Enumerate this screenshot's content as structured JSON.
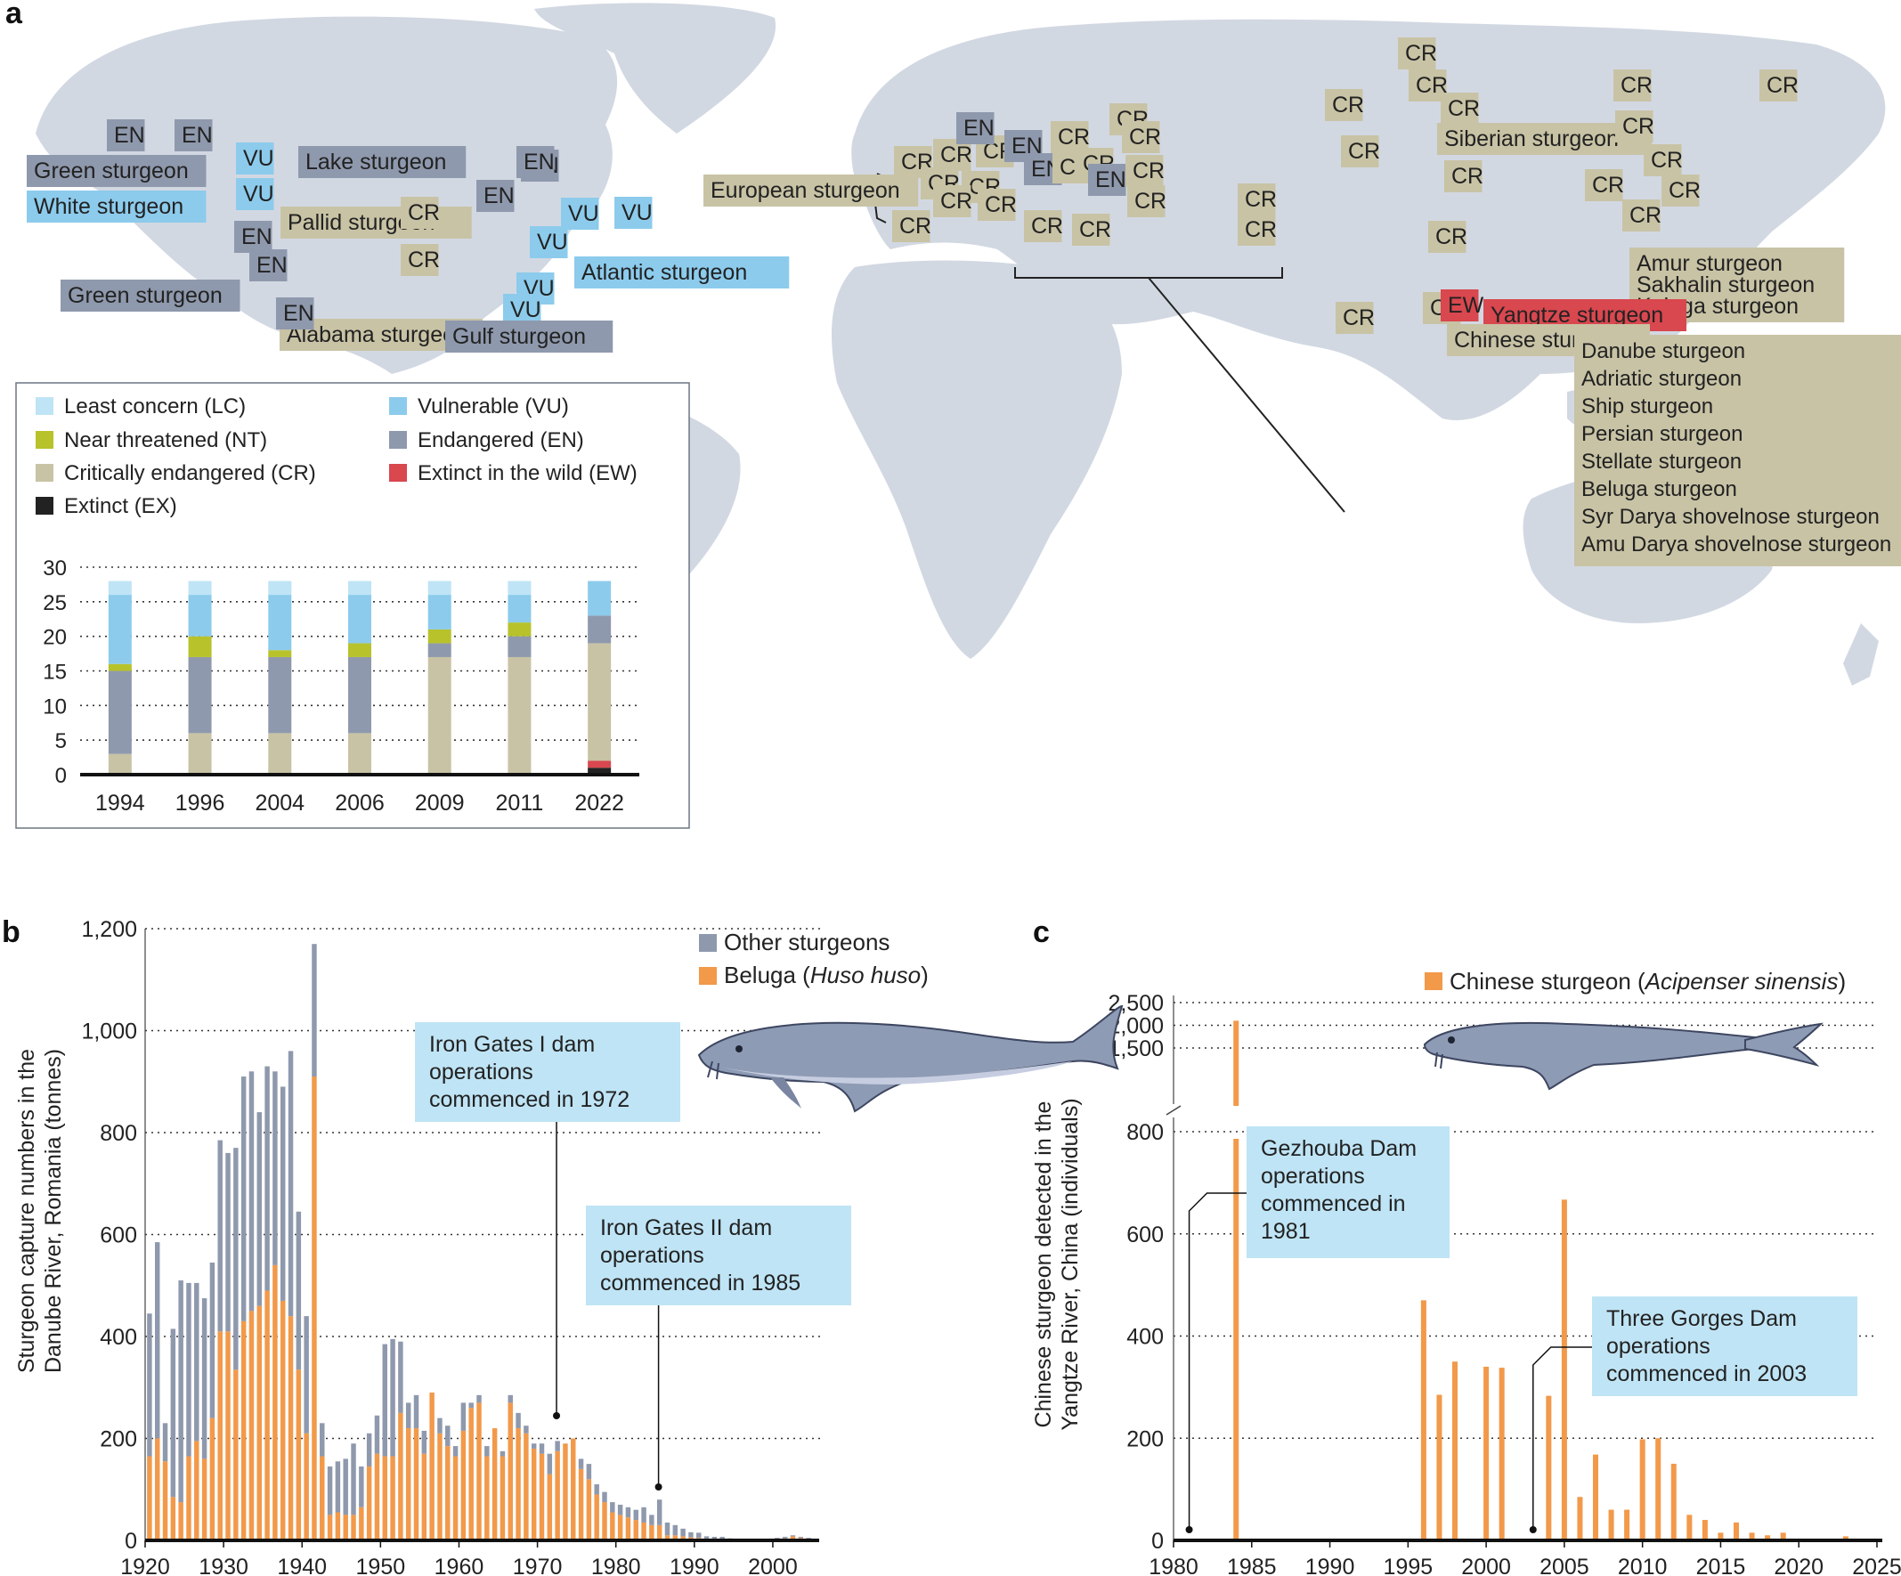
{
  "panel_labels": {
    "a": "a",
    "b": "b",
    "c": "c"
  },
  "colors": {
    "LC": "#bfe4f5",
    "VU": "#8ccbec",
    "NT": "#b8c22b",
    "EN": "#8f99ad",
    "CR": "#c8c3a5",
    "EW": "#d9474f",
    "EX": "#222222",
    "land": "#d2d8e2",
    "beluga": "#f2994a",
    "other": "#8f99ad"
  },
  "map_labels": [
    {
      "text": "EN",
      "status": "EN"
    },
    {
      "text": "EN",
      "status": "EN"
    },
    {
      "text": "Green sturgeon",
      "status": "EN"
    },
    {
      "text": "VU",
      "status": "VU"
    },
    {
      "text": "Lake sturgeon",
      "status": "EN"
    },
    {
      "text": "EN",
      "status": "EN"
    },
    {
      "text": "White sturgeon",
      "status": "VU"
    },
    {
      "text": "VU",
      "status": "VU"
    },
    {
      "text": "EN",
      "status": "EN"
    },
    {
      "text": "Pallid sturgeon",
      "status": "CR"
    },
    {
      "text": "CR",
      "status": "CR"
    },
    {
      "text": "VU",
      "status": "VU"
    },
    {
      "text": "VU",
      "status": "VU"
    },
    {
      "text": "EN",
      "status": "EN"
    },
    {
      "text": "EN",
      "status": "EN"
    },
    {
      "text": "VU",
      "status": "VU"
    },
    {
      "text": "Atlantic sturgeon",
      "status": "VU"
    },
    {
      "text": "CR",
      "status": "CR"
    },
    {
      "text": "VU",
      "status": "VU"
    },
    {
      "text": "Green sturgeon",
      "status": "EN"
    },
    {
      "text": "EN",
      "status": "EN"
    },
    {
      "text": "Alabama sturgeon",
      "status": "CR"
    },
    {
      "text": "EN",
      "status": "EN"
    },
    {
      "text": "VU",
      "status": "VU"
    },
    {
      "text": "Gulf sturgeon",
      "status": "EN"
    },
    {
      "text": "European sturgeon",
      "status": "CR"
    },
    {
      "text": "CR",
      "status": "CR"
    },
    {
      "text": "CR",
      "status": "CR"
    },
    {
      "text": "CR",
      "status": "CR"
    },
    {
      "text": "CR",
      "status": "CR"
    },
    {
      "text": "CR",
      "status": "CR"
    },
    {
      "text": "EN",
      "status": "EN"
    },
    {
      "text": "EN",
      "status": "EN"
    },
    {
      "text": "EN",
      "status": "EN"
    },
    {
      "text": "CR",
      "status": "CR"
    },
    {
      "text": "CR",
      "status": "CR"
    },
    {
      "text": "CR",
      "status": "CR"
    },
    {
      "text": "CR",
      "status": "CR"
    },
    {
      "text": "CR",
      "status": "CR"
    },
    {
      "text": "CR",
      "status": "CR"
    },
    {
      "text": "CR",
      "status": "CR"
    },
    {
      "text": "CR",
      "status": "CR"
    },
    {
      "text": "CR",
      "status": "CR"
    },
    {
      "text": "EN",
      "status": "EN"
    },
    {
      "text": "CR",
      "status": "CR"
    },
    {
      "text": "CR",
      "status": "CR"
    },
    {
      "text": "CR",
      "status": "CR"
    },
    {
      "text": "CR",
      "status": "CR"
    },
    {
      "text": "CR",
      "status": "CR"
    },
    {
      "text": "CR",
      "status": "CR"
    },
    {
      "text": "CR",
      "status": "CR"
    },
    {
      "text": "CR",
      "status": "CR"
    },
    {
      "text": "CR",
      "status": "CR"
    },
    {
      "text": "Siberian sturgeon",
      "status": "CR"
    },
    {
      "text": "CR",
      "status": "CR"
    },
    {
      "text": "CR",
      "status": "CR"
    },
    {
      "text": "CR",
      "status": "CR"
    },
    {
      "text": "CR",
      "status": "CR"
    },
    {
      "text": "CR",
      "status": "CR"
    },
    {
      "text": "CR",
      "status": "CR"
    },
    {
      "text": "CR",
      "status": "CR"
    },
    {
      "text": "CR",
      "status": "CR"
    },
    {
      "text": "CR",
      "status": "CR"
    },
    {
      "text": "CR",
      "status": "CR"
    },
    {
      "text": "CR",
      "status": "CR"
    },
    {
      "text": "Amur sturgeon\nSakhalin sturgeon\nKaluga sturgeon",
      "status": "CR"
    },
    {
      "text": "CR",
      "status": "CR"
    },
    {
      "text": "CR",
      "status": "CR"
    },
    {
      "text": "EW",
      "status": "EW"
    },
    {
      "text": "Yangtze sturgeon",
      "status": "EW"
    },
    {
      "text": "Chinese sturgeon",
      "status": "CR"
    },
    {
      "text": "Danube sturgeon\nAdriatic sturgeon\nShip sturgeon\nPersian sturgeon\nStellate sturgeon\nBeluga sturgeon\nSyr Darya shovelnose sturgeon\nAmu Darya shovelnose sturgeon",
      "status": "CR"
    }
  ],
  "legend_a": [
    {
      "key": "LC",
      "label": "Least concern (LC)"
    },
    {
      "key": "VU",
      "label": "Vulnerable (VU)"
    },
    {
      "key": "NT",
      "label": "Near threatened (NT)"
    },
    {
      "key": "EN",
      "label": "Endangered (EN)"
    },
    {
      "key": "CR",
      "label": "Critically endangered (CR)"
    },
    {
      "key": "EW",
      "label": "Extinct in the wild (EW)"
    },
    {
      "key": "EX",
      "label": "Extinct (EX)"
    }
  ],
  "chart_data": [
    {
      "id": "a-inset",
      "type": "bar",
      "stacked": true,
      "categories": [
        "1994",
        "1996",
        "2004",
        "2006",
        "2009",
        "2011",
        "2022"
      ],
      "series": [
        {
          "name": "Extinct (EX)",
          "key": "EX",
          "values": [
            0,
            0,
            0,
            0,
            0,
            0,
            1
          ]
        },
        {
          "name": "Extinct in the wild (EW)",
          "key": "EW",
          "values": [
            0,
            0,
            0,
            0,
            0,
            0,
            1
          ]
        },
        {
          "name": "Critically endangered (CR)",
          "key": "CR",
          "values": [
            3,
            6,
            6,
            6,
            17,
            17,
            17
          ]
        },
        {
          "name": "Endangered (EN)",
          "key": "EN",
          "values": [
            12,
            11,
            11,
            11,
            2,
            3,
            4
          ]
        },
        {
          "name": "Near threatened (NT)",
          "key": "NT",
          "values": [
            1,
            3,
            1,
            2,
            2,
            2,
            0
          ]
        },
        {
          "name": "Vulnerable (VU)",
          "key": "VU",
          "values": [
            10,
            6,
            8,
            7,
            5,
            4,
            5
          ]
        },
        {
          "name": "Least concern (LC)",
          "key": "LC",
          "values": [
            2,
            2,
            2,
            2,
            2,
            2,
            0
          ]
        }
      ],
      "ylim": [
        0,
        30
      ],
      "yticks": [
        0,
        5,
        10,
        15,
        20,
        25,
        30
      ],
      "grid": true
    },
    {
      "id": "b",
      "type": "bar",
      "stacked": true,
      "ylabel": "Sturgeon capture numbers in the\nDanube River, Romania (tonnes)",
      "xlim": [
        1920,
        2005
      ],
      "ylim": [
        0,
        1200
      ],
      "yticks": [
        "0",
        "200",
        "400",
        "600",
        "800",
        "1,000",
        "1,200"
      ],
      "xticks": [
        1920,
        1930,
        1940,
        1950,
        1960,
        1970,
        1980,
        1990,
        2000
      ],
      "grid": true,
      "legend": [
        {
          "name": "Other sturgeons",
          "key": "other"
        },
        {
          "name_parts": [
            "Beluga (",
            "Huso huso",
            ")"
          ],
          "key": "beluga"
        }
      ],
      "x": [
        1920,
        1921,
        1922,
        1923,
        1924,
        1925,
        1926,
        1927,
        1928,
        1929,
        1930,
        1931,
        1932,
        1933,
        1934,
        1935,
        1936,
        1937,
        1938,
        1939,
        1940,
        1941,
        1942,
        1943,
        1944,
        1945,
        1946,
        1947,
        1948,
        1949,
        1950,
        1951,
        1952,
        1953,
        1954,
        1955,
        1956,
        1957,
        1958,
        1959,
        1960,
        1961,
        1962,
        1963,
        1964,
        1965,
        1966,
        1967,
        1968,
        1969,
        1970,
        1971,
        1972,
        1973,
        1974,
        1975,
        1976,
        1977,
        1978,
        1979,
        1980,
        1981,
        1982,
        1983,
        1984,
        1985,
        1986,
        1987,
        1988,
        1989,
        1990,
        1991,
        1992,
        1993,
        1994,
        1995,
        1996,
        1997,
        1998,
        1999,
        2000,
        2001,
        2002,
        2003,
        2004
      ],
      "beluga": [
        165,
        200,
        155,
        85,
        75,
        165,
        195,
        160,
        240,
        410,
        410,
        335,
        430,
        450,
        460,
        490,
        540,
        470,
        440,
        335,
        210,
        910,
        165,
        50,
        55,
        50,
        50,
        65,
        145,
        170,
        165,
        165,
        250,
        220,
        220,
        170,
        290,
        210,
        185,
        165,
        215,
        260,
        270,
        165,
        220,
        165,
        270,
        220,
        210,
        180,
        170,
        130,
        175,
        190,
        200,
        140,
        120,
        90,
        75,
        55,
        50,
        45,
        40,
        35,
        30,
        30,
        10,
        10,
        8,
        6,
        5,
        3,
        2,
        2,
        1,
        1,
        1,
        1,
        1,
        1,
        3,
        4,
        8,
        5,
        3
      ],
      "other": [
        280,
        385,
        75,
        330,
        435,
        340,
        310,
        315,
        305,
        375,
        350,
        435,
        480,
        470,
        380,
        440,
        380,
        420,
        520,
        310,
        230,
        260,
        65,
        95,
        100,
        110,
        140,
        80,
        65,
        75,
        220,
        230,
        140,
        50,
        65,
        45,
        0,
        30,
        40,
        20,
        55,
        10,
        15,
        20,
        0,
        10,
        15,
        30,
        15,
        10,
        20,
        40,
        20,
        0,
        0,
        20,
        30,
        20,
        20,
        20,
        20,
        20,
        20,
        30,
        20,
        50,
        25,
        20,
        15,
        10,
        10,
        5,
        5,
        5,
        3,
        2,
        2,
        2,
        2,
        2,
        2,
        3,
        2,
        2,
        2
      ],
      "annotations": [
        {
          "text": "Iron Gates I dam\noperations\ncommenced in 1972",
          "year": 1972
        },
        {
          "text": "Iron Gates II dam\noperations\ncommenced in 1985",
          "year": 1985
        }
      ]
    },
    {
      "id": "c",
      "type": "bar",
      "ylabel": "Chinese sturgeon detected in the\nYangtze River, China (individuals)",
      "xlim": [
        1980,
        2025
      ],
      "xticks": [
        1980,
        1985,
        1990,
        1995,
        2000,
        2005,
        2010,
        2015,
        2020,
        2025
      ],
      "yticks_lower": [
        "0",
        "200",
        "400",
        "600",
        "800"
      ],
      "yticks_upper": [
        "1,500",
        "2,000",
        "2,500"
      ],
      "axis_break": true,
      "grid": true,
      "legend": [
        {
          "name_parts": [
            "Chinese sturgeon (",
            "Acipenser sinensis",
            ")"
          ],
          "key": "beluga"
        }
      ],
      "x": [
        1984,
        1996,
        1997,
        1998,
        2000,
        2001,
        2004,
        2005,
        2006,
        2007,
        2008,
        2009,
        2010,
        2011,
        2012,
        2013,
        2014,
        2015,
        2016,
        2017,
        2018,
        2019,
        2020,
        2021,
        2022,
        2023
      ],
      "values": [
        2100,
        470,
        285,
        350,
        340,
        338,
        283,
        667,
        85,
        168,
        60,
        60,
        198,
        200,
        150,
        50,
        40,
        15,
        35,
        15,
        10,
        15,
        0,
        0,
        0,
        8
      ],
      "annotations": [
        {
          "text": "Gezhouba Dam\noperations\ncommenced in\n1981",
          "year": 1981
        },
        {
          "text": "Three Gorges Dam\noperations\ncommenced in 2003",
          "year": 2003
        }
      ]
    }
  ]
}
